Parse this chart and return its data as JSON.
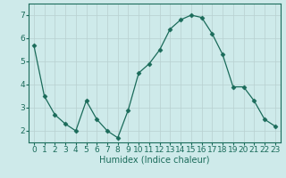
{
  "x": [
    0,
    1,
    2,
    3,
    4,
    5,
    6,
    7,
    8,
    9,
    10,
    11,
    12,
    13,
    14,
    15,
    16,
    17,
    18,
    19,
    20,
    21,
    22,
    23
  ],
  "y": [
    5.7,
    3.5,
    2.7,
    2.3,
    2.0,
    3.3,
    2.5,
    2.0,
    1.7,
    2.9,
    4.5,
    4.9,
    5.5,
    6.4,
    6.8,
    7.0,
    6.9,
    6.2,
    5.3,
    3.9,
    3.9,
    3.3,
    2.5,
    2.2
  ],
  "line_color": "#1a6b5a",
  "marker": "D",
  "marker_size": 2.5,
  "bg_color": "#ceeaea",
  "grid_color_major": "#b0c8c8",
  "grid_color_minor": "#c8dede",
  "xlabel": "Humidex (Indice chaleur)",
  "xlabel_fontsize": 7,
  "tick_fontsize": 6.5,
  "ylim": [
    1.5,
    7.5
  ],
  "yticks": [
    2,
    3,
    4,
    5,
    6,
    7
  ],
  "xticks": [
    0,
    1,
    2,
    3,
    4,
    5,
    6,
    7,
    8,
    9,
    10,
    11,
    12,
    13,
    14,
    15,
    16,
    17,
    18,
    19,
    20,
    21,
    22,
    23
  ]
}
